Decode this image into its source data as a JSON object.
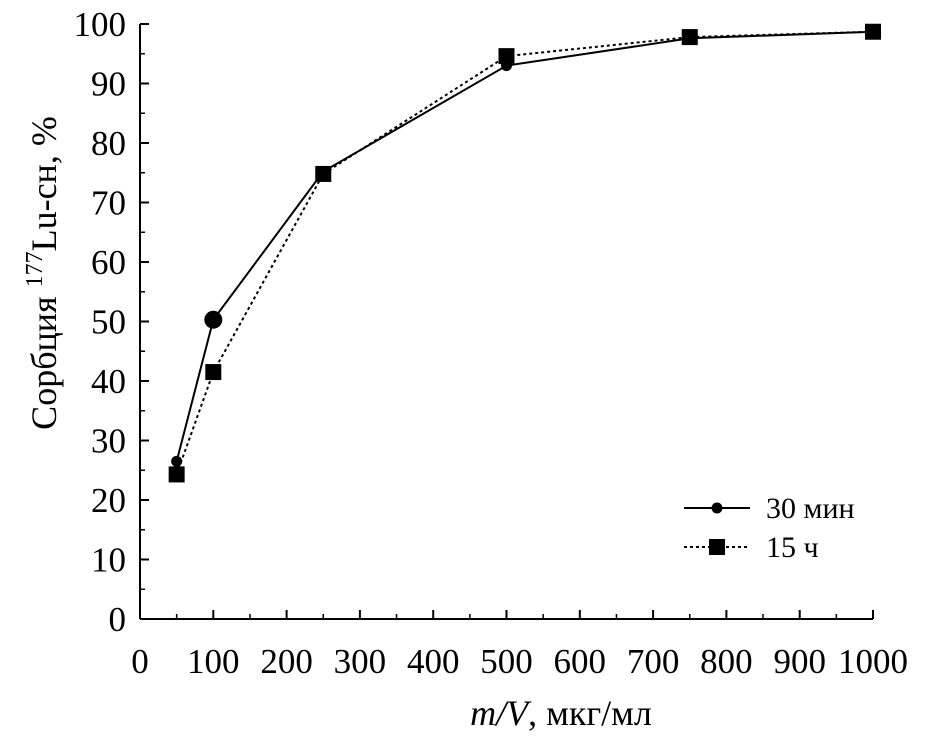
{
  "chart_data": {
    "type": "line",
    "xlabel_italic": "m/V",
    "xlabel_rest": ", мкг/мл",
    "ylabel_prefix": "Сорбция ",
    "ylabel_sup": "177",
    "ylabel_suffix": "Lu-сн, %",
    "xlim": [
      0,
      1000
    ],
    "ylim": [
      0,
      100
    ],
    "xticks": [
      "0",
      "100",
      "200",
      "300",
      "400",
      "500",
      "600",
      "700",
      "800",
      "900",
      "1000"
    ],
    "yticks": [
      "0",
      "10",
      "20",
      "30",
      "40",
      "50",
      "60",
      "70",
      "80",
      "90",
      "100"
    ],
    "grid": false,
    "legend_position": "bottom-right",
    "series": [
      {
        "name": "30 мин",
        "marker": "circle",
        "line_style": "solid",
        "x": [
          50,
          100,
          250,
          500,
          750,
          1000
        ],
        "y": [
          26.5,
          50.3,
          75.2,
          93,
          97.6,
          98.7
        ]
      },
      {
        "name": "15 ч",
        "marker": "square",
        "line_style": "dotted",
        "x": [
          50,
          100,
          250,
          500,
          750,
          1000
        ],
        "y": [
          24.3,
          41.5,
          74.8,
          94.6,
          97.8,
          98.7
        ]
      }
    ]
  }
}
